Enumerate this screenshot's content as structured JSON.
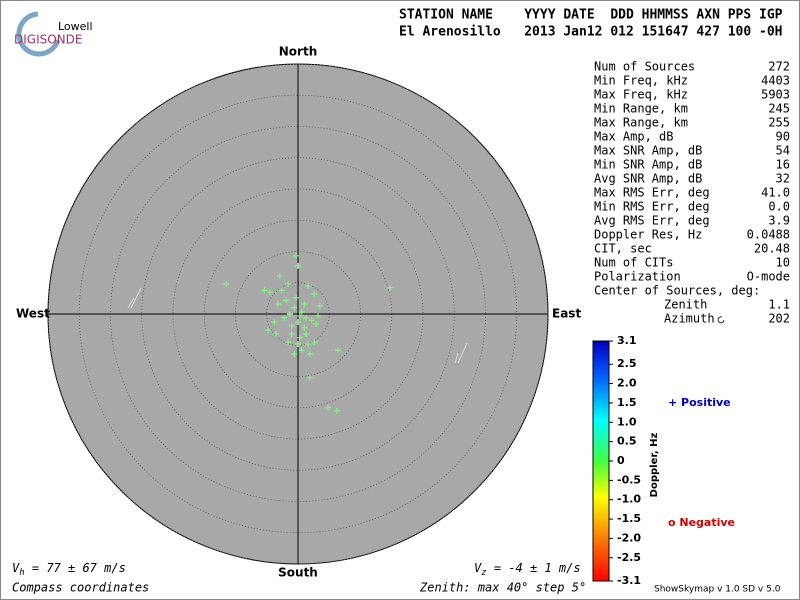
{
  "logo": {
    "top": "Lowell",
    "bottom": "DIGISONDE"
  },
  "header": {
    "line1": "STATION NAME    YYYY DATE  DDD HHMMSS AXN PPS IGP",
    "line2": "El Arenosillo   2013 Jan12 012 151647 427 100 -0H"
  },
  "skymap": {
    "type": "polar-scatter",
    "north": "North",
    "south": "South",
    "east": "East",
    "west": "West",
    "rlim": [
      0,
      40
    ],
    "rticks": [
      5,
      10,
      15,
      20,
      25,
      30,
      35,
      40
    ],
    "color": "#7fff7f",
    "sources": {
      "x": [
        -11.5,
        14.7,
        6.4,
        1.9,
        4.8,
        6.2,
        -4.8,
        -4.5,
        -5.4,
        -0.3,
        0,
        -2.9,
        -1.6,
        1.6,
        2.6,
        -3.2,
        -1.9,
        -0.6,
        0.6,
        1.3,
        0,
        -1.0,
        1.0,
        2.2,
        3.2,
        -2.2,
        -3.5,
        -1.6,
        0.3,
        1.6,
        1.9,
        0.6,
        -1.0,
        2.9,
        -0.3,
        1.0,
        -1.3,
        0.3,
        -2.6,
        3.5,
        -3.8,
        1.3,
        0,
        -0.6,
        2.6
      ],
      "y": [
        4.8,
        4.2,
        -5.8,
        -10.2,
        -15.0,
        -15.5,
        -2.6,
        3.5,
        3.8,
        9.3,
        7.7,
        6.1,
        4.8,
        4.5,
        3.2,
        1.6,
        2.2,
        1.0,
        0.3,
        -0.6,
        -1.3,
        -1.9,
        -2.2,
        -1.0,
        -0.3,
        -0.6,
        -3.2,
        -4.5,
        -3.8,
        -4.8,
        -6.4,
        -5.8,
        -3.2,
        -1.6,
        2.6,
        1.6,
        0,
        -0.3,
        3.8,
        1.3,
        -1.3,
        -3.2,
        -4.8,
        -6.4,
        -4.5
      ]
    }
  },
  "stats": [
    {
      "label": "Num of Sources",
      "value": "272"
    },
    {
      "label": "Min Freq, kHz",
      "value": "4403"
    },
    {
      "label": "Max Freq, kHz",
      "value": "5903"
    },
    {
      "label": "Min Range, km",
      "value": "245"
    },
    {
      "label": "Max Range, km",
      "value": "255"
    },
    {
      "label": "Max Amp, dB",
      "value": "90"
    },
    {
      "label": "Max SNR Amp, dB",
      "value": "54"
    },
    {
      "label": "Min SNR Amp, dB",
      "value": "16"
    },
    {
      "label": "Avg SNR Amp, dB",
      "value": "32"
    },
    {
      "label": "Max RMS Err, deg",
      "value": "41.0"
    },
    {
      "label": "Min RMS Err, deg",
      "value": "0.0"
    },
    {
      "label": "Avg RMS Err, deg",
      "value": "3.9"
    },
    {
      "label": "Doppler Res, Hz",
      "value": "0.0488"
    },
    {
      "label": "CIT, sec",
      "value": "20.48"
    },
    {
      "label": "Num of CITs",
      "value": "10"
    },
    {
      "label": "Polarization",
      "value": "O-mode"
    }
  ],
  "center_of_sources": {
    "label": "Center of Sources, deg:",
    "rows": [
      {
        "label": "Zenith",
        "value": "1.1"
      },
      {
        "label": "Azimuth",
        "value": "202"
      }
    ]
  },
  "colorbar": {
    "title": "Doppler, Hz",
    "lim": [
      -3.1,
      3.1
    ],
    "ticks": [
      3.1,
      2.5,
      2,
      1.5,
      1,
      0.5,
      0,
      -0.5,
      -1.0,
      -1.5,
      -2.0,
      -2.5,
      -3.1
    ],
    "tick_labels": [
      "3.1",
      "2.5",
      "2.0",
      "1.5",
      "1.0",
      "0.5",
      "0",
      "-0.5",
      "-1.0",
      "-1.5",
      "-2.0",
      "-2.5",
      "-3.1"
    ]
  },
  "legend": {
    "positive": "+ Positive",
    "negative": "o Negative"
  },
  "vh": {
    "symbol": "V",
    "subscript": "h",
    "text": " = 77 ± 67 m/s"
  },
  "vz": {
    "symbol": "V",
    "subscript": "z",
    "text": " = -4 ± 1 m/s"
  },
  "footer": {
    "left": "Compass coordinates",
    "middle": "Zenith: max 40°  step 5°",
    "right": "ShowSkymap v 1.0   SD v 5.0"
  }
}
